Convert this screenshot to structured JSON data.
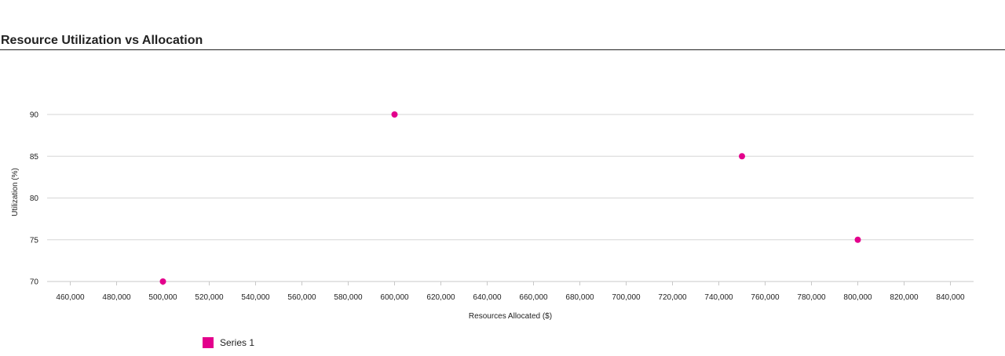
{
  "chart_data": {
    "type": "scatter",
    "title": "Resource Utilization vs Allocation",
    "xlabel": "Resources Allocated ($)",
    "ylabel": "Utilization (%)",
    "xlim": [
      450000,
      850000
    ],
    "ylim": [
      70,
      90
    ],
    "x_ticks": [
      460000,
      480000,
      500000,
      520000,
      540000,
      560000,
      580000,
      600000,
      620000,
      640000,
      660000,
      680000,
      700000,
      720000,
      740000,
      760000,
      780000,
      800000,
      820000,
      840000
    ],
    "y_ticks": [
      70,
      75,
      80,
      85,
      90
    ],
    "grid": "horizontal",
    "legend_position": "bottom-left",
    "series": [
      {
        "name": "Series 1",
        "color": "#e3008c",
        "points": [
          {
            "x": 500000,
            "y": 70
          },
          {
            "x": 600000,
            "y": 90
          },
          {
            "x": 750000,
            "y": 85
          },
          {
            "x": 800000,
            "y": 75
          }
        ]
      }
    ]
  }
}
